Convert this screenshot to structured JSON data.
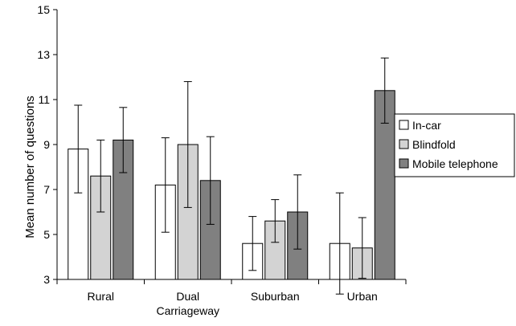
{
  "chart_data": {
    "type": "bar",
    "title": "",
    "xlabel": "",
    "ylabel": "Mean number of questions",
    "categories": [
      "Rural",
      "Dual Carriageway",
      "Suburban",
      "Urban"
    ],
    "category_lines": [
      [
        "Rural"
      ],
      [
        "Dual",
        "Carriageway"
      ],
      [
        "Suburban"
      ],
      [
        "Urban"
      ]
    ],
    "ylim": [
      3,
      15
    ],
    "yticks": [
      "3",
      "5",
      "7",
      "9",
      "11",
      "13",
      "15"
    ],
    "grid": false,
    "legend_position": "right",
    "series": [
      {
        "name": "In-car",
        "color": "#ffffff",
        "values": [
          8.8,
          7.2,
          4.6,
          4.6
        ],
        "error": [
          1.95,
          2.1,
          1.2,
          2.25
        ]
      },
      {
        "name": "Blindfold",
        "color": "#d3d3d3",
        "values": [
          7.6,
          9.0,
          5.6,
          4.4
        ],
        "error": [
          1.6,
          2.8,
          0.95,
          1.35
        ]
      },
      {
        "name": "Mobile telephone",
        "color": "#808080",
        "values": [
          9.2,
          7.4,
          6.0,
          11.4
        ],
        "error": [
          1.45,
          1.95,
          1.65,
          1.45
        ]
      }
    ]
  }
}
